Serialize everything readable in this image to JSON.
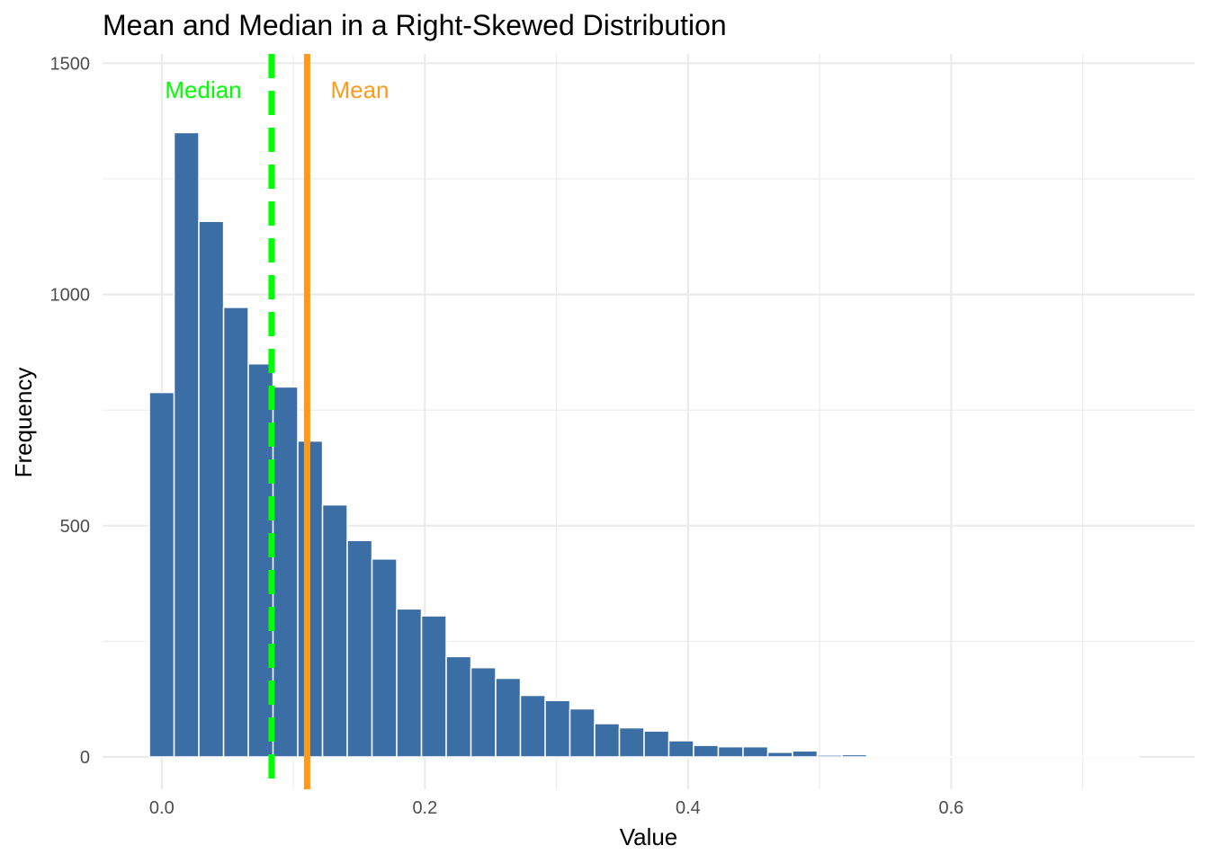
{
  "chart_data": {
    "type": "bar",
    "title": "Mean and Median in a Right-Skewed Distribution",
    "xlabel": "Value",
    "ylabel": "Frequency",
    "xlim": [
      -0.045,
      0.785
    ],
    "ylim": [
      -70,
      1520
    ],
    "x_ticks": [
      0.0,
      0.2,
      0.4,
      0.6
    ],
    "x_tick_labels": [
      "0.0",
      "0.2",
      "0.4",
      "0.6"
    ],
    "y_ticks": [
      0,
      500,
      1000,
      1500
    ],
    "y_tick_labels": [
      "0",
      "500",
      "1000",
      "1500"
    ],
    "grid": true,
    "bin_width": 0.0188,
    "bins": [
      {
        "x": 0.0,
        "count": 788
      },
      {
        "x": 0.0188,
        "count": 1350
      },
      {
        "x": 0.0376,
        "count": 1158
      },
      {
        "x": 0.0564,
        "count": 972
      },
      {
        "x": 0.0752,
        "count": 850
      },
      {
        "x": 0.094,
        "count": 800
      },
      {
        "x": 0.1128,
        "count": 683
      },
      {
        "x": 0.1316,
        "count": 545
      },
      {
        "x": 0.1504,
        "count": 468
      },
      {
        "x": 0.1692,
        "count": 428
      },
      {
        "x": 0.188,
        "count": 320
      },
      {
        "x": 0.2068,
        "count": 305
      },
      {
        "x": 0.2256,
        "count": 217
      },
      {
        "x": 0.2444,
        "count": 193
      },
      {
        "x": 0.2632,
        "count": 170
      },
      {
        "x": 0.282,
        "count": 133
      },
      {
        "x": 0.3008,
        "count": 122
      },
      {
        "x": 0.3196,
        "count": 104
      },
      {
        "x": 0.3384,
        "count": 72
      },
      {
        "x": 0.3572,
        "count": 63
      },
      {
        "x": 0.376,
        "count": 56
      },
      {
        "x": 0.3948,
        "count": 35
      },
      {
        "x": 0.4136,
        "count": 25
      },
      {
        "x": 0.4324,
        "count": 22
      },
      {
        "x": 0.4512,
        "count": 22
      },
      {
        "x": 0.47,
        "count": 10
      },
      {
        "x": 0.4888,
        "count": 13
      },
      {
        "x": 0.5076,
        "count": 4
      },
      {
        "x": 0.5264,
        "count": 5
      },
      {
        "x": 0.5452,
        "count": 1
      },
      {
        "x": 0.564,
        "count": 1
      },
      {
        "x": 0.5828,
        "count": 1
      },
      {
        "x": 0.6016,
        "count": 1
      },
      {
        "x": 0.6204,
        "count": 1
      },
      {
        "x": 0.6392,
        "count": 0
      },
      {
        "x": 0.658,
        "count": 0
      },
      {
        "x": 0.6768,
        "count": 1
      },
      {
        "x": 0.6956,
        "count": 0
      },
      {
        "x": 0.7144,
        "count": 1
      },
      {
        "x": 0.7332,
        "count": 1
      }
    ],
    "reference_lines": [
      {
        "label": "Median",
        "x": 0.0835,
        "color": "#00ff00",
        "style": "dashed"
      },
      {
        "label": "Mean",
        "x": 0.1105,
        "color": "#ff9a1a",
        "style": "solid"
      }
    ],
    "bar_color": "#3a6ea5",
    "annotations": [
      {
        "text": "Median",
        "color": "#00ff00"
      },
      {
        "text": "Mean",
        "color": "#ff9a1a"
      }
    ]
  }
}
